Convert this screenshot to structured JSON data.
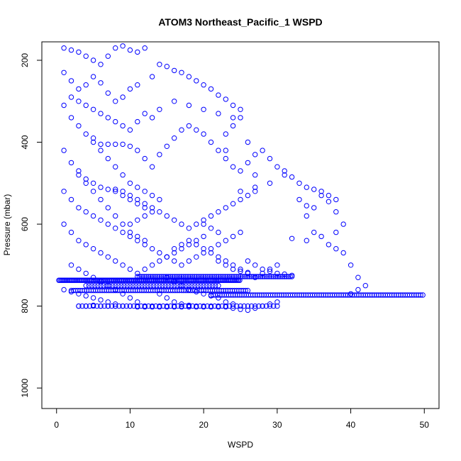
{
  "chart_data": {
    "type": "scatter",
    "title": "ATOM3 Northeast_Pacific_1 WSPD",
    "xlabel": "WSPD",
    "ylabel": "Pressure (mbar)",
    "xlim": [
      -2,
      52
    ],
    "ylim": [
      1050,
      155
    ],
    "y_reversed": true,
    "x_ticks": [
      0,
      10,
      20,
      30,
      40,
      50
    ],
    "y_ticks": [
      200,
      400,
      600,
      800,
      1000
    ],
    "grid": false,
    "legend": "none",
    "marker": "open-circle",
    "color": "#0000ff",
    "points": [
      [
        1,
        170
      ],
      [
        2,
        175
      ],
      [
        3,
        180
      ],
      [
        4,
        190
      ],
      [
        5,
        200
      ],
      [
        6,
        210
      ],
      [
        7,
        190
      ],
      [
        8,
        170
      ],
      [
        9,
        165
      ],
      [
        10,
        175
      ],
      [
        11,
        180
      ],
      [
        12,
        170
      ],
      [
        1,
        230
      ],
      [
        2,
        250
      ],
      [
        3,
        270
      ],
      [
        4,
        260
      ],
      [
        5,
        240
      ],
      [
        6,
        255
      ],
      [
        7,
        280
      ],
      [
        8,
        300
      ],
      [
        9,
        290
      ],
      [
        10,
        270
      ],
      [
        11,
        260
      ],
      [
        13,
        240
      ],
      [
        14,
        210
      ],
      [
        15,
        215
      ],
      [
        16,
        225
      ],
      [
        17,
        230
      ],
      [
        18,
        240
      ],
      [
        19,
        250
      ],
      [
        20,
        260
      ],
      [
        21,
        270
      ],
      [
        22,
        285
      ],
      [
        23,
        295
      ],
      [
        24,
        310
      ],
      [
        25,
        320
      ],
      [
        24,
        340
      ],
      [
        22,
        330
      ],
      [
        20,
        320
      ],
      [
        18,
        310
      ],
      [
        16,
        300
      ],
      [
        14,
        320
      ],
      [
        13,
        340
      ],
      [
        12,
        330
      ],
      [
        11,
        350
      ],
      [
        10,
        370
      ],
      [
        9,
        360
      ],
      [
        8,
        350
      ],
      [
        7,
        340
      ],
      [
        6,
        330
      ],
      [
        5,
        320
      ],
      [
        4,
        310
      ],
      [
        3,
        300
      ],
      [
        2,
        290
      ],
      [
        1,
        310
      ],
      [
        2,
        340
      ],
      [
        3,
        360
      ],
      [
        4,
        380
      ],
      [
        5,
        390
      ],
      [
        6,
        405
      ],
      [
        7,
        405
      ],
      [
        8,
        405
      ],
      [
        9,
        405
      ],
      [
        10,
        410
      ],
      [
        11,
        420
      ],
      [
        12,
        440
      ],
      [
        13,
        460
      ],
      [
        14,
        430
      ],
      [
        15,
        410
      ],
      [
        16,
        390
      ],
      [
        17,
        370
      ],
      [
        18,
        360
      ],
      [
        19,
        370
      ],
      [
        20,
        380
      ],
      [
        21,
        400
      ],
      [
        22,
        420
      ],
      [
        23,
        440
      ],
      [
        24,
        460
      ],
      [
        25,
        470
      ],
      [
        26,
        450
      ],
      [
        27,
        430
      ],
      [
        28,
        420
      ],
      [
        29,
        440
      ],
      [
        30,
        460
      ],
      [
        31,
        480
      ],
      [
        29,
        500
      ],
      [
        27,
        510
      ],
      [
        25,
        520
      ],
      [
        23,
        380
      ],
      [
        23,
        420
      ],
      [
        24,
        360
      ],
      [
        25,
        340
      ],
      [
        26,
        400
      ],
      [
        27,
        480
      ],
      [
        1,
        420
      ],
      [
        2,
        450
      ],
      [
        3,
        470
      ],
      [
        4,
        490
      ],
      [
        5,
        500
      ],
      [
        6,
        510
      ],
      [
        7,
        515
      ],
      [
        8,
        515
      ],
      [
        9,
        520
      ],
      [
        10,
        530
      ],
      [
        11,
        540
      ],
      [
        12,
        550
      ],
      [
        13,
        560
      ],
      [
        14,
        570
      ],
      [
        15,
        580
      ],
      [
        16,
        590
      ],
      [
        17,
        600
      ],
      [
        18,
        610
      ],
      [
        19,
        600
      ],
      [
        20,
        590
      ],
      [
        21,
        580
      ],
      [
        22,
        570
      ],
      [
        23,
        560
      ],
      [
        24,
        550
      ],
      [
        25,
        540
      ],
      [
        26,
        530
      ],
      [
        27,
        520
      ],
      [
        1,
        520
      ],
      [
        2,
        540
      ],
      [
        3,
        560
      ],
      [
        4,
        570
      ],
      [
        5,
        580
      ],
      [
        6,
        590
      ],
      [
        7,
        600
      ],
      [
        8,
        610
      ],
      [
        9,
        620
      ],
      [
        10,
        630
      ],
      [
        11,
        640
      ],
      [
        12,
        650
      ],
      [
        13,
        660
      ],
      [
        14,
        670
      ],
      [
        15,
        680
      ],
      [
        16,
        690
      ],
      [
        17,
        700
      ],
      [
        18,
        690
      ],
      [
        19,
        680
      ],
      [
        20,
        670
      ],
      [
        21,
        660
      ],
      [
        22,
        650
      ],
      [
        23,
        640
      ],
      [
        24,
        630
      ],
      [
        25,
        620
      ],
      [
        1,
        600
      ],
      [
        2,
        620
      ],
      [
        3,
        640
      ],
      [
        4,
        650
      ],
      [
        5,
        660
      ],
      [
        6,
        670
      ],
      [
        7,
        680
      ],
      [
        8,
        690
      ],
      [
        9,
        700
      ],
      [
        10,
        710
      ],
      [
        11,
        720
      ],
      [
        12,
        710
      ],
      [
        13,
        700
      ],
      [
        14,
        690
      ],
      [
        15,
        680
      ],
      [
        16,
        660
      ],
      [
        17,
        650
      ],
      [
        18,
        640
      ],
      [
        19,
        650
      ],
      [
        20,
        660
      ],
      [
        21,
        670
      ],
      [
        22,
        680
      ],
      [
        23,
        690
      ],
      [
        24,
        700
      ],
      [
        25,
        710
      ],
      [
        26,
        720
      ],
      [
        27,
        730
      ],
      [
        28,
        720
      ],
      [
        29,
        710
      ],
      [
        30,
        700
      ],
      [
        2,
        700
      ],
      [
        3,
        710
      ],
      [
        4,
        720
      ],
      [
        5,
        730
      ],
      [
        6,
        740
      ],
      [
        7,
        750
      ],
      [
        8,
        760
      ],
      [
        9,
        770
      ],
      [
        10,
        780
      ],
      [
        11,
        790
      ],
      [
        12,
        800
      ],
      [
        3,
        800
      ],
      [
        4,
        800
      ],
      [
        5,
        798
      ],
      [
        6,
        800
      ],
      [
        7,
        800
      ],
      [
        8,
        800
      ],
      [
        9,
        800
      ],
      [
        10,
        800
      ],
      [
        11,
        802
      ],
      [
        12,
        802
      ],
      [
        13,
        802
      ],
      [
        14,
        802
      ],
      [
        15,
        802
      ],
      [
        16,
        802
      ],
      [
        17,
        802
      ],
      [
        18,
        802
      ],
      [
        19,
        802
      ],
      [
        20,
        802
      ],
      [
        21,
        802
      ],
      [
        22,
        802
      ],
      [
        23,
        802
      ],
      [
        24,
        805
      ],
      [
        25,
        808
      ],
      [
        26,
        810
      ],
      [
        27,
        805
      ],
      [
        28,
        800
      ],
      [
        29,
        795
      ],
      [
        30,
        790
      ],
      [
        33,
        540
      ],
      [
        34,
        555
      ],
      [
        34,
        580
      ],
      [
        35,
        560
      ],
      [
        36,
        530
      ],
      [
        37,
        545
      ],
      [
        38,
        570
      ],
      [
        39,
        600
      ],
      [
        38,
        620
      ],
      [
        36,
        630
      ],
      [
        34,
        640
      ],
      [
        32,
        635
      ],
      [
        35,
        620
      ],
      [
        37,
        650
      ],
      [
        38,
        660
      ],
      [
        39,
        670
      ],
      [
        40,
        700
      ],
      [
        41,
        730
      ],
      [
        42,
        750
      ],
      [
        41,
        760
      ],
      [
        40,
        770
      ],
      [
        31,
        470
      ],
      [
        32,
        485
      ],
      [
        33,
        500
      ],
      [
        34,
        510
      ],
      [
        35,
        515
      ],
      [
        36,
        520
      ],
      [
        37,
        530
      ],
      [
        38,
        540
      ],
      [
        20,
        600
      ],
      [
        21,
        610
      ],
      [
        22,
        620
      ],
      [
        20,
        630
      ],
      [
        19,
        640
      ],
      [
        18,
        650
      ],
      [
        17,
        660
      ],
      [
        16,
        670
      ],
      [
        15,
        680
      ],
      [
        10,
        600
      ],
      [
        11,
        590
      ],
      [
        12,
        580
      ],
      [
        13,
        570
      ],
      [
        12,
        560
      ],
      [
        11,
        550
      ],
      [
        10,
        540
      ],
      [
        9,
        530
      ],
      [
        8,
        520
      ],
      [
        5,
        400
      ],
      [
        6,
        420
      ],
      [
        7,
        440
      ],
      [
        8,
        460
      ],
      [
        9,
        480
      ],
      [
        10,
        500
      ],
      [
        11,
        510
      ],
      [
        12,
        520
      ],
      [
        13,
        530
      ],
      [
        14,
        540
      ],
      [
        3,
        480
      ],
      [
        4,
        500
      ],
      [
        5,
        520
      ],
      [
        6,
        540
      ],
      [
        7,
        560
      ],
      [
        8,
        580
      ],
      [
        9,
        600
      ],
      [
        10,
        620
      ],
      [
        11,
        630
      ],
      [
        12,
        640
      ],
      [
        26,
        690
      ],
      [
        27,
        700
      ],
      [
        28,
        710
      ],
      [
        29,
        715
      ],
      [
        30,
        720
      ],
      [
        31,
        722
      ],
      [
        32,
        725
      ],
      [
        22,
        690
      ],
      [
        23,
        700
      ],
      [
        24,
        710
      ],
      [
        25,
        715
      ],
      [
        26,
        718
      ],
      [
        15,
        730
      ],
      [
        16,
        740
      ],
      [
        17,
        750
      ],
      [
        18,
        760
      ],
      [
        19,
        765
      ],
      [
        20,
        770
      ],
      [
        21,
        775
      ],
      [
        22,
        780
      ],
      [
        23,
        790
      ],
      [
        24,
        795
      ],
      [
        14,
        770
      ],
      [
        15,
        780
      ],
      [
        16,
        790
      ],
      [
        17,
        795
      ],
      [
        18,
        798
      ],
      [
        1,
        760
      ],
      [
        2,
        765
      ],
      [
        3,
        770
      ],
      [
        4,
        775
      ],
      [
        5,
        780
      ],
      [
        6,
        785
      ],
      [
        7,
        790
      ],
      [
        8,
        795
      ]
    ],
    "bands": [
      {
        "y": 737,
        "x_from": 0.3,
        "x_to": 25,
        "step": 0.15
      },
      {
        "y": 728,
        "x_from": 11,
        "x_to": 32,
        "step": 0.25
      },
      {
        "y": 762,
        "x_from": 2,
        "x_to": 26,
        "step": 0.3
      },
      {
        "y": 750,
        "x_from": 4,
        "x_to": 22,
        "step": 0.4
      },
      {
        "y": 773,
        "x_from": 21,
        "x_to": 50,
        "step": 0.3
      },
      {
        "y": 800,
        "x_from": 3,
        "x_to": 30,
        "step": 0.5
      }
    ]
  }
}
